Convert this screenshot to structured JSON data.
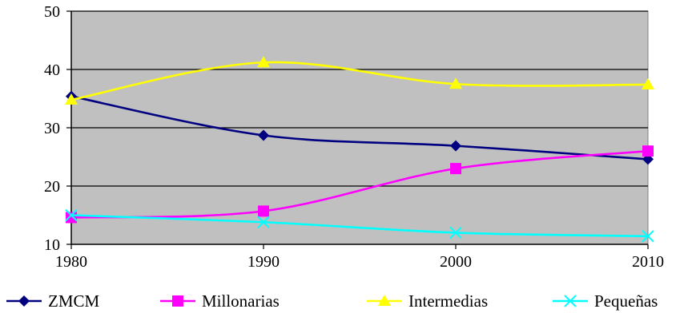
{
  "chart_data": {
    "type": "line",
    "title": "",
    "xlabel": "",
    "ylabel": "",
    "x": [
      1980,
      1990,
      2000,
      2010
    ],
    "x_tick_labels": [
      "1980",
      "1990",
      "2000",
      "2010"
    ],
    "ylim": [
      10,
      50
    ],
    "y_ticks": [
      10,
      20,
      30,
      40,
      50
    ],
    "y_tick_labels": [
      "10",
      "20",
      "30",
      "40",
      "50"
    ],
    "grid": "horizontal",
    "plot_background": "#c0c0c0",
    "smoothed": true,
    "legend_position": "bottom",
    "series": [
      {
        "name": "ZMCM",
        "values": [
          35.4,
          28.7,
          26.9,
          24.6
        ],
        "color": "#000080",
        "marker": "diamond"
      },
      {
        "name": "Millonarias",
        "values": [
          14.6,
          15.7,
          23.0,
          26.0
        ],
        "color": "#ff00ff",
        "marker": "square"
      },
      {
        "name": "Intermedias",
        "values": [
          34.8,
          41.2,
          37.5,
          37.4
        ],
        "color": "#ffff00",
        "marker": "triangle"
      },
      {
        "name": "Pequeñas",
        "values": [
          15.0,
          13.8,
          12.0,
          11.4
        ],
        "color": "#00ffff",
        "marker": "x"
      }
    ]
  }
}
